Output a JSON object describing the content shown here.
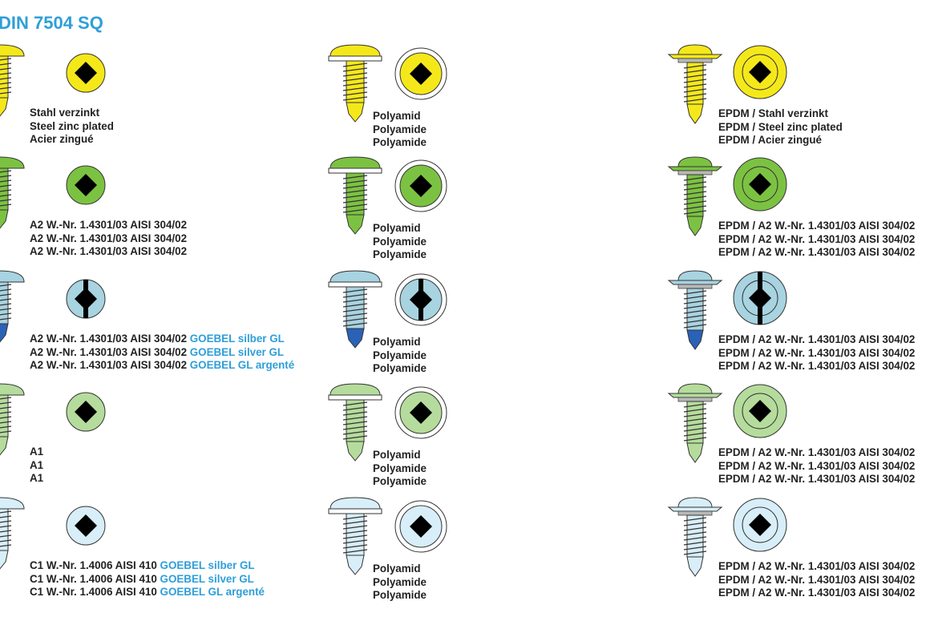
{
  "title": "DIN 7504 SQ",
  "colors": {
    "accent": "#2e9fd8",
    "outline": "#333333",
    "drive": "#000000",
    "epdm": "#b8b8b8"
  },
  "rows": [
    {
      "color": "#f5e81a",
      "tip": "#f5e81a",
      "drive": "square",
      "cols": [
        {
          "lines": [
            {
              "text": "Stahl verzinkt",
              "highlight": ""
            },
            {
              "text": "Steel zinc plated",
              "highlight": ""
            },
            {
              "text": "Acier zingué",
              "highlight": ""
            }
          ]
        },
        {
          "lines": [
            {
              "text": "Polyamid",
              "highlight": ""
            },
            {
              "text": "Polyamide",
              "highlight": ""
            },
            {
              "text": "Polyamide",
              "highlight": ""
            }
          ]
        },
        {
          "lines": [
            {
              "text": "EPDM / Stahl verzinkt",
              "highlight": ""
            },
            {
              "text": "EPDM / Steel zinc plated",
              "highlight": ""
            },
            {
              "text": "EPDM / Acier zingué",
              "highlight": ""
            }
          ]
        }
      ]
    },
    {
      "color": "#7cc242",
      "tip": "#7cc242",
      "drive": "square",
      "cols": [
        {
          "lines": [
            {
              "text": "A2 W.-Nr. 1.4301/03 AISI 304/02",
              "highlight": ""
            },
            {
              "text": "A2 W.-Nr. 1.4301/03 AISI 304/02",
              "highlight": ""
            },
            {
              "text": "A2 W.-Nr. 1.4301/03 AISI 304/02",
              "highlight": ""
            }
          ]
        },
        {
          "lines": [
            {
              "text": "Polyamid",
              "highlight": ""
            },
            {
              "text": "Polyamide",
              "highlight": ""
            },
            {
              "text": "Polyamide",
              "highlight": ""
            }
          ]
        },
        {
          "lines": [
            {
              "text": "EPDM / A2 W.-Nr. 1.4301/03 AISI 304/02",
              "highlight": ""
            },
            {
              "text": "EPDM / A2 W.-Nr. 1.4301/03 AISI 304/02",
              "highlight": ""
            },
            {
              "text": "EPDM / A2 W.-Nr. 1.4301/03 AISI 304/02",
              "highlight": ""
            }
          ]
        }
      ]
    },
    {
      "color": "#a8d3e0",
      "tip": "#2a62b8",
      "drive": "combi",
      "cols": [
        {
          "lines": [
            {
              "text": "A2 W.-Nr. 1.4301/03 AISI 304/02",
              "highlight": "GOEBEL silber GL"
            },
            {
              "text": "A2 W.-Nr. 1.4301/03 AISI 304/02",
              "highlight": "GOEBEL silver GL"
            },
            {
              "text": "A2 W.-Nr. 1.4301/03 AISI 304/02",
              "highlight": "GOEBEL GL argenté"
            }
          ]
        },
        {
          "lines": [
            {
              "text": "Polyamid",
              "highlight": ""
            },
            {
              "text": "Polyamide",
              "highlight": ""
            },
            {
              "text": "Polyamide",
              "highlight": ""
            }
          ]
        },
        {
          "lines": [
            {
              "text": "EPDM / A2 W.-Nr. 1.4301/03 AISI 304/02",
              "highlight": ""
            },
            {
              "text": "EPDM / A2 W.-Nr. 1.4301/03 AISI 304/02",
              "highlight": ""
            },
            {
              "text": "EPDM / A2 W.-Nr. 1.4301/03 AISI 304/02",
              "highlight": ""
            }
          ]
        }
      ]
    },
    {
      "color": "#b5dc9c",
      "tip": "#b5dc9c",
      "drive": "square",
      "cols": [
        {
          "lines": [
            {
              "text": "A1",
              "highlight": ""
            },
            {
              "text": "A1",
              "highlight": ""
            },
            {
              "text": "A1",
              "highlight": ""
            }
          ]
        },
        {
          "lines": [
            {
              "text": "Polyamid",
              "highlight": ""
            },
            {
              "text": "Polyamide",
              "highlight": ""
            },
            {
              "text": "Polyamide",
              "highlight": ""
            }
          ]
        },
        {
          "lines": [
            {
              "text": "EPDM / A2 W.-Nr. 1.4301/03 AISI 304/02",
              "highlight": ""
            },
            {
              "text": "EPDM / A2 W.-Nr. 1.4301/03 AISI 304/02",
              "highlight": ""
            },
            {
              "text": "EPDM / A2 W.-Nr. 1.4301/03 AISI 304/02",
              "highlight": ""
            }
          ]
        }
      ]
    },
    {
      "color": "#d8eef8",
      "tip": "#d8eef8",
      "drive": "square",
      "cols": [
        {
          "lines": [
            {
              "text": "C1 W.-Nr. 1.4006 AISI 410",
              "highlight": "GOEBEL silber GL"
            },
            {
              "text": "C1 W.-Nr. 1.4006 AISI 410",
              "highlight": "GOEBEL silver GL"
            },
            {
              "text": "C1 W.-Nr. 1.4006 AISI 410",
              "highlight": "GOEBEL GL argenté"
            }
          ]
        },
        {
          "lines": [
            {
              "text": "Polyamid",
              "highlight": ""
            },
            {
              "text": "Polyamide",
              "highlight": ""
            },
            {
              "text": "Polyamide",
              "highlight": ""
            }
          ]
        },
        {
          "lines": [
            {
              "text": "EPDM / A2 W.-Nr. 1.4301/03 AISI 304/02",
              "highlight": ""
            },
            {
              "text": "EPDM / A2 W.-Nr. 1.4301/03 AISI 304/02",
              "highlight": ""
            },
            {
              "text": "EPDM / A2 W.-Nr. 1.4301/03 AISI 304/02",
              "highlight": ""
            }
          ]
        }
      ]
    }
  ]
}
